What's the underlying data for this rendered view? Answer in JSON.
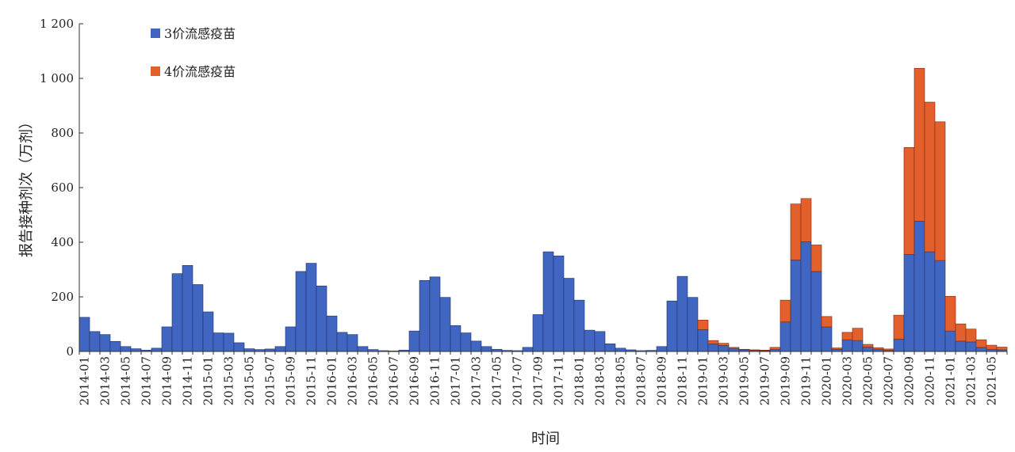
{
  "chart_data": {
    "type": "bar",
    "stacked": true,
    "xlabel": "时间",
    "ylabel": "报告接种剂次（万剂）",
    "ylim": [
      0,
      1200
    ],
    "yticks": [
      0,
      200,
      400,
      600,
      800,
      1000,
      1200
    ],
    "ytick_labels": [
      "0",
      "200",
      "400",
      "600",
      "800",
      "1 000",
      "1 200"
    ],
    "grid": false,
    "legend_position": "top-left",
    "categories": [
      "2014-01",
      "2014-02",
      "2014-03",
      "2014-04",
      "2014-05",
      "2014-06",
      "2014-07",
      "2014-08",
      "2014-09",
      "2014-10",
      "2014-11",
      "2014-12",
      "2015-01",
      "2015-02",
      "2015-03",
      "2015-04",
      "2015-05",
      "2015-06",
      "2015-07",
      "2015-08",
      "2015-09",
      "2015-10",
      "2015-11",
      "2015-12",
      "2016-01",
      "2016-02",
      "2016-03",
      "2016-04",
      "2016-05",
      "2016-06",
      "2016-07",
      "2016-08",
      "2016-09",
      "2016-10",
      "2016-11",
      "2016-12",
      "2017-01",
      "2017-02",
      "2017-03",
      "2017-04",
      "2017-05",
      "2017-06",
      "2017-07",
      "2017-08",
      "2017-09",
      "2017-10",
      "2017-11",
      "2017-12",
      "2018-01",
      "2018-02",
      "2018-03",
      "2018-04",
      "2018-05",
      "2018-06",
      "2018-07",
      "2018-08",
      "2018-09",
      "2018-10",
      "2018-11",
      "2018-12",
      "2019-01",
      "2019-02",
      "2019-03",
      "2019-04",
      "2019-05",
      "2019-06",
      "2019-07",
      "2019-08",
      "2019-09",
      "2019-10",
      "2019-11",
      "2019-12",
      "2020-01",
      "2020-02",
      "2020-03",
      "2020-04",
      "2020-05",
      "2020-06",
      "2020-07",
      "2020-08",
      "2020-09",
      "2020-10",
      "2020-11",
      "2020-12",
      "2021-01",
      "2021-02",
      "2021-03",
      "2021-04",
      "2021-05",
      "2021-06"
    ],
    "tick_labels": [
      "2014-01",
      "2014-03",
      "2014-05",
      "2014-07",
      "2014-09",
      "2014-11",
      "2015-01",
      "2015-03",
      "2015-05",
      "2015-07",
      "2015-09",
      "2015-11",
      "2016-01",
      "2016-03",
      "2016-05",
      "2016-07",
      "2016-09",
      "2016-11",
      "2017-01",
      "2017-03",
      "2017-05",
      "2017-07",
      "2017-09",
      "2017-11",
      "2018-01",
      "2018-03",
      "2018-05",
      "2018-07",
      "2018-09",
      "2018-11",
      "2019-01",
      "2019-03",
      "2019-05",
      "2019-07",
      "2019-09",
      "2019-11",
      "2020-01",
      "2020-03",
      "2020-05",
      "2020-07",
      "2020-09",
      "2020-11",
      "2021-01",
      "2021-03",
      "2021-05"
    ],
    "series": [
      {
        "name": "3价流感疫苗",
        "color": "#4166c2",
        "values": [
          125,
          73,
          62,
          37,
          18,
          10,
          5,
          12,
          90,
          285,
          315,
          245,
          145,
          68,
          67,
          32,
          10,
          7,
          9,
          18,
          90,
          293,
          323,
          240,
          130,
          70,
          62,
          18,
          7,
          3,
          2,
          5,
          75,
          260,
          273,
          198,
          95,
          68,
          38,
          18,
          8,
          4,
          3,
          15,
          135,
          365,
          350,
          268,
          188,
          78,
          73,
          28,
          12,
          6,
          3,
          4,
          18,
          185,
          275,
          198,
          80,
          28,
          22,
          11,
          6,
          4,
          3,
          7,
          108,
          335,
          402,
          293,
          90,
          8,
          43,
          40,
          16,
          8,
          4,
          45,
          355,
          477,
          365,
          333,
          75,
          38,
          35,
          15,
          8,
          6
        ]
      },
      {
        "name": "4价流感疫苗",
        "color": "#e35f2b",
        "values": [
          0,
          0,
          0,
          0,
          0,
          0,
          0,
          0,
          0,
          0,
          0,
          0,
          0,
          0,
          0,
          0,
          0,
          0,
          0,
          0,
          0,
          0,
          0,
          0,
          0,
          0,
          0,
          0,
          0,
          0,
          0,
          0,
          0,
          0,
          0,
          0,
          0,
          0,
          0,
          0,
          0,
          0,
          0,
          0,
          0,
          0,
          0,
          0,
          0,
          0,
          0,
          0,
          0,
          0,
          0,
          0,
          0,
          0,
          0,
          0,
          35,
          12,
          8,
          4,
          2,
          2,
          2,
          8,
          80,
          205,
          158,
          97,
          38,
          5,
          27,
          45,
          10,
          6,
          5,
          88,
          392,
          560,
          548,
          508,
          127,
          63,
          47,
          28,
          15,
          10
        ]
      }
    ]
  }
}
